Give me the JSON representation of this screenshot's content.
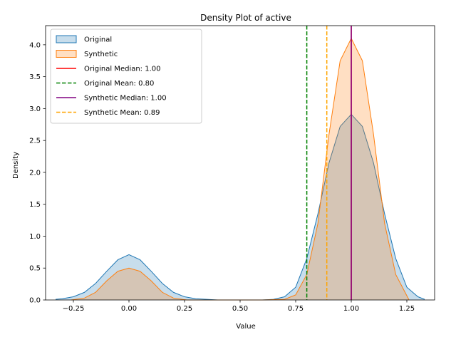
{
  "chart_data": {
    "type": "area",
    "title": "Density Plot of active",
    "xlabel": "Value",
    "ylabel": "Density",
    "xlim": [
      -0.375,
      1.375
    ],
    "ylim": [
      0,
      4.3
    ],
    "xticks": [
      -0.25,
      0.0,
      0.25,
      0.5,
      0.75,
      1.0,
      1.25
    ],
    "xtick_labels": [
      "−0.25",
      "0.00",
      "0.25",
      "0.50",
      "0.75",
      "1.00",
      "1.25"
    ],
    "yticks": [
      0,
      0.5,
      1.0,
      1.5,
      2.0,
      2.5,
      3.0,
      3.5,
      4.0
    ],
    "ytick_labels": [
      "0.0",
      "0.5",
      "1.0",
      "1.5",
      "2.0",
      "2.5",
      "3.0",
      "3.5",
      "4.0"
    ],
    "grid": false,
    "legend_position": "top-left",
    "series": [
      {
        "name": "Original",
        "color": "#1f77b4",
        "x": [
          -0.33,
          -0.3,
          -0.25,
          -0.2,
          -0.15,
          -0.1,
          -0.05,
          0.0,
          0.05,
          0.1,
          0.15,
          0.2,
          0.25,
          0.3,
          0.35,
          0.4,
          0.5,
          0.6,
          0.65,
          0.7,
          0.75,
          0.8,
          0.85,
          0.9,
          0.95,
          1.0,
          1.05,
          1.1,
          1.15,
          1.2,
          1.25,
          1.3,
          1.33
        ],
        "y": [
          0.01,
          0.02,
          0.05,
          0.12,
          0.26,
          0.45,
          0.63,
          0.71,
          0.63,
          0.45,
          0.26,
          0.12,
          0.05,
          0.02,
          0.01,
          0.0,
          0.0,
          0.0,
          0.01,
          0.05,
          0.2,
          0.65,
          1.35,
          2.15,
          2.72,
          2.91,
          2.72,
          2.15,
          1.35,
          0.65,
          0.2,
          0.05,
          0.01
        ]
      },
      {
        "name": "Synthetic",
        "color": "#ff7f0e",
        "x": [
          -0.26,
          -0.2,
          -0.15,
          -0.1,
          -0.05,
          0.0,
          0.05,
          0.1,
          0.15,
          0.2,
          0.26,
          0.4,
          0.6,
          0.7,
          0.75,
          0.8,
          0.85,
          0.9,
          0.95,
          1.0,
          1.05,
          1.1,
          1.15,
          1.2,
          1.26
        ],
        "y": [
          0.0,
          0.03,
          0.12,
          0.3,
          0.45,
          0.5,
          0.45,
          0.3,
          0.12,
          0.03,
          0.0,
          0.0,
          0.0,
          0.01,
          0.08,
          0.4,
          1.2,
          2.6,
          3.75,
          4.1,
          3.75,
          2.6,
          1.2,
          0.4,
          0.0
        ]
      }
    ],
    "reference_lines": [
      {
        "label": "Original Median: 1.00",
        "x": 1.0,
        "color": "#ff0000",
        "style": "solid"
      },
      {
        "label": "Original Mean: 0.80",
        "x": 0.8,
        "color": "#008000",
        "style": "dashed"
      },
      {
        "label": "Synthetic Median: 1.00",
        "x": 1.0,
        "color": "#800080",
        "style": "solid"
      },
      {
        "label": "Synthetic Mean: 0.89",
        "x": 0.89,
        "color": "#ffa500",
        "style": "dashed"
      }
    ]
  }
}
